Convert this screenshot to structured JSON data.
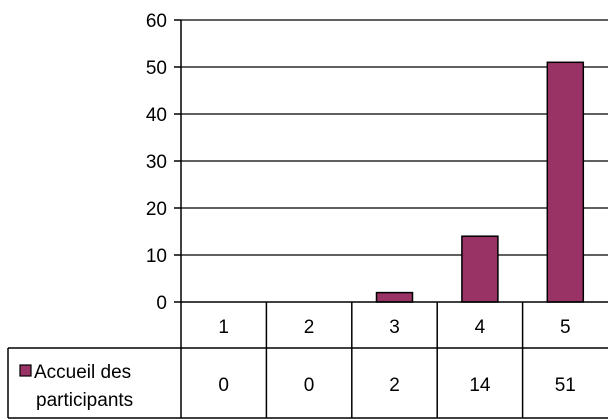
{
  "chart_data": {
    "type": "bar",
    "categories": [
      "1",
      "2",
      "3",
      "4",
      "5"
    ],
    "series": [
      {
        "name": "Accueil des participants",
        "values": [
          0,
          0,
          2,
          14,
          51
        ]
      }
    ],
    "value_labels": [
      "0",
      "0",
      "2",
      "14",
      "51"
    ],
    "ylim": [
      0,
      60
    ],
    "yticks": [
      "0",
      "10",
      "20",
      "30",
      "40",
      "50",
      "60"
    ],
    "ytick_values": [
      0,
      10,
      20,
      30,
      40,
      50,
      60
    ],
    "grid": true,
    "legend": "data-table",
    "colors": {
      "bar": "#993366",
      "bar_edge": "#000000",
      "grid": "#000000"
    },
    "legend_lines": [
      "Accueil des",
      "participants"
    ]
  }
}
